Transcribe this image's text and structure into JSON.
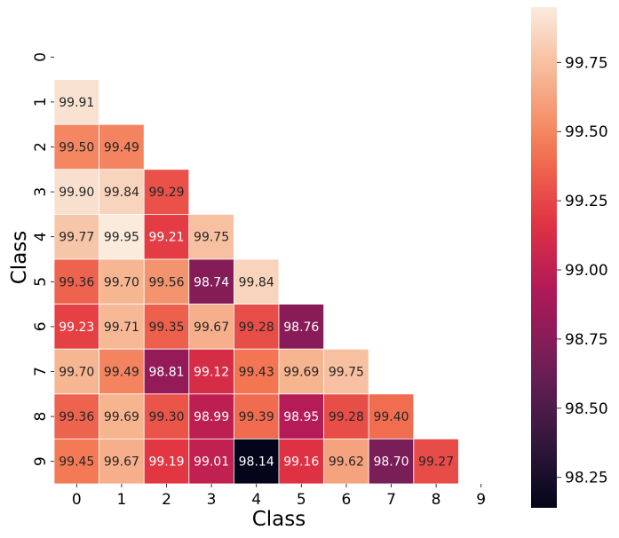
{
  "chart_data": {
    "type": "heatmap",
    "xlabel": "Class",
    "ylabel": "Class",
    "x_tick_labels": [
      "0",
      "1",
      "2",
      "3",
      "4",
      "5",
      "6",
      "7",
      "8",
      "9"
    ],
    "y_tick_labels": [
      "0",
      "1",
      "2",
      "3",
      "4",
      "5",
      "6",
      "7",
      "8",
      "9"
    ],
    "mask": "upper-triangle-and-diagonal",
    "cells": [
      {
        "row": 1,
        "col": 0,
        "value": 99.91,
        "label": "99.91"
      },
      {
        "row": 2,
        "col": 0,
        "value": 99.5,
        "label": "99.50"
      },
      {
        "row": 2,
        "col": 1,
        "value": 99.49,
        "label": "99.49"
      },
      {
        "row": 3,
        "col": 0,
        "value": 99.9,
        "label": "99.90"
      },
      {
        "row": 3,
        "col": 1,
        "value": 99.84,
        "label": "99.84"
      },
      {
        "row": 3,
        "col": 2,
        "value": 99.29,
        "label": "99.29"
      },
      {
        "row": 4,
        "col": 0,
        "value": 99.77,
        "label": "99.77"
      },
      {
        "row": 4,
        "col": 1,
        "value": 99.95,
        "label": "99.95"
      },
      {
        "row": 4,
        "col": 2,
        "value": 99.21,
        "label": "99.21"
      },
      {
        "row": 4,
        "col": 3,
        "value": 99.75,
        "label": "99.75"
      },
      {
        "row": 5,
        "col": 0,
        "value": 99.36,
        "label": "99.36"
      },
      {
        "row": 5,
        "col": 1,
        "value": 99.7,
        "label": "99.70"
      },
      {
        "row": 5,
        "col": 2,
        "value": 99.56,
        "label": "99.56"
      },
      {
        "row": 5,
        "col": 3,
        "value": 98.74,
        "label": "98.74"
      },
      {
        "row": 5,
        "col": 4,
        "value": 99.84,
        "label": "99.84"
      },
      {
        "row": 6,
        "col": 0,
        "value": 99.23,
        "label": "99.23"
      },
      {
        "row": 6,
        "col": 1,
        "value": 99.71,
        "label": "99.71"
      },
      {
        "row": 6,
        "col": 2,
        "value": 99.35,
        "label": "99.35"
      },
      {
        "row": 6,
        "col": 3,
        "value": 99.67,
        "label": "99.67"
      },
      {
        "row": 6,
        "col": 4,
        "value": 99.28,
        "label": "99.28"
      },
      {
        "row": 6,
        "col": 5,
        "value": 98.76,
        "label": "98.76"
      },
      {
        "row": 7,
        "col": 0,
        "value": 99.7,
        "label": "99.70"
      },
      {
        "row": 7,
        "col": 1,
        "value": 99.49,
        "label": "99.49"
      },
      {
        "row": 7,
        "col": 2,
        "value": 98.81,
        "label": "98.81"
      },
      {
        "row": 7,
        "col": 3,
        "value": 99.12,
        "label": "99.12"
      },
      {
        "row": 7,
        "col": 4,
        "value": 99.43,
        "label": "99.43"
      },
      {
        "row": 7,
        "col": 5,
        "value": 99.69,
        "label": "99.69"
      },
      {
        "row": 7,
        "col": 6,
        "value": 99.75,
        "label": "99.75"
      },
      {
        "row": 8,
        "col": 0,
        "value": 99.36,
        "label": "99.36"
      },
      {
        "row": 8,
        "col": 1,
        "value": 99.69,
        "label": "99.69"
      },
      {
        "row": 8,
        "col": 2,
        "value": 99.3,
        "label": "99.30"
      },
      {
        "row": 8,
        "col": 3,
        "value": 98.99,
        "label": "98.99"
      },
      {
        "row": 8,
        "col": 4,
        "value": 99.39,
        "label": "99.39"
      },
      {
        "row": 8,
        "col": 5,
        "value": 98.95,
        "label": "98.95"
      },
      {
        "row": 8,
        "col": 6,
        "value": 99.28,
        "label": "99.28"
      },
      {
        "row": 8,
        "col": 7,
        "value": 99.4,
        "label": "99.40"
      },
      {
        "row": 9,
        "col": 0,
        "value": 99.45,
        "label": "99.45"
      },
      {
        "row": 9,
        "col": 1,
        "value": 99.67,
        "label": "99.67"
      },
      {
        "row": 9,
        "col": 2,
        "value": 99.19,
        "label": "99.19"
      },
      {
        "row": 9,
        "col": 3,
        "value": 99.01,
        "label": "99.01"
      },
      {
        "row": 9,
        "col": 4,
        "value": 98.14,
        "label": "98.14"
      },
      {
        "row": 9,
        "col": 5,
        "value": 99.16,
        "label": "99.16"
      },
      {
        "row": 9,
        "col": 6,
        "value": 99.62,
        "label": "99.62"
      },
      {
        "row": 9,
        "col": 7,
        "value": 98.7,
        "label": "98.70"
      },
      {
        "row": 9,
        "col": 8,
        "value": 99.27,
        "label": "99.27"
      }
    ],
    "colorbar": {
      "vmin": 98.14,
      "vmax": 99.95,
      "ticks": [
        98.25,
        98.5,
        98.75,
        99.0,
        99.25,
        99.5,
        99.75
      ],
      "tick_labels": [
        "98.25",
        "98.50",
        "98.75",
        "99.00",
        "99.25",
        "99.50",
        "99.75"
      ]
    },
    "colormap": [
      "#03051a",
      "#36193e",
      "#701f57",
      "#ae1759",
      "#e13342",
      "#f37651",
      "#f6b48f",
      "#faebdd"
    ],
    "cell_edge_color": "#ffffff",
    "label_color_dark": "#262626",
    "label_color_light": "#ffffff"
  }
}
